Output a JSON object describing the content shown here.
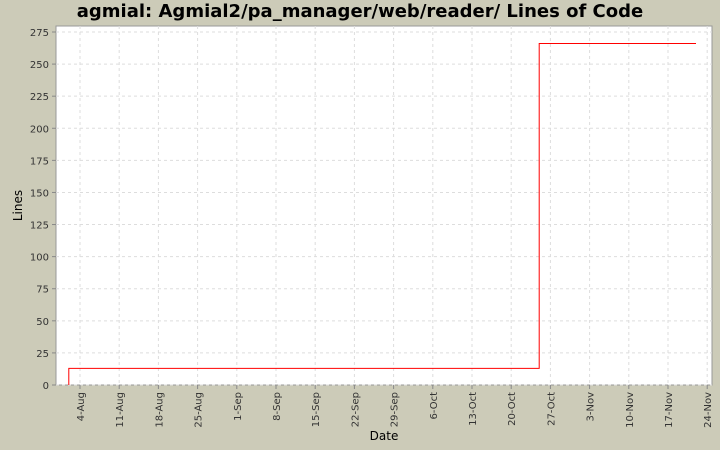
{
  "chart_data": {
    "type": "line",
    "title": "agmial: Agmial2/pa_manager/web/reader/ Lines of Code",
    "xlabel": "Date",
    "ylabel": "Lines",
    "ylim": [
      0,
      275
    ],
    "yticks": [
      0,
      25,
      50,
      75,
      100,
      125,
      150,
      175,
      200,
      225,
      250,
      275
    ],
    "xticks": [
      "4-Aug",
      "11-Aug",
      "18-Aug",
      "25-Aug",
      "1-Sep",
      "8-Sep",
      "15-Sep",
      "22-Sep",
      "29-Sep",
      "6-Oct",
      "13-Oct",
      "20-Oct",
      "27-Oct",
      "3-Nov",
      "10-Nov",
      "17-Nov",
      "24-Nov"
    ],
    "grid": true,
    "line_style": "step",
    "series": [
      {
        "color": "#ff0000",
        "points": [
          [
            "08-02",
            0
          ],
          [
            "08-02",
            13
          ],
          [
            "10-25",
            13
          ],
          [
            "10-25",
            266
          ],
          [
            "11-22",
            266
          ]
        ]
      }
    ]
  }
}
